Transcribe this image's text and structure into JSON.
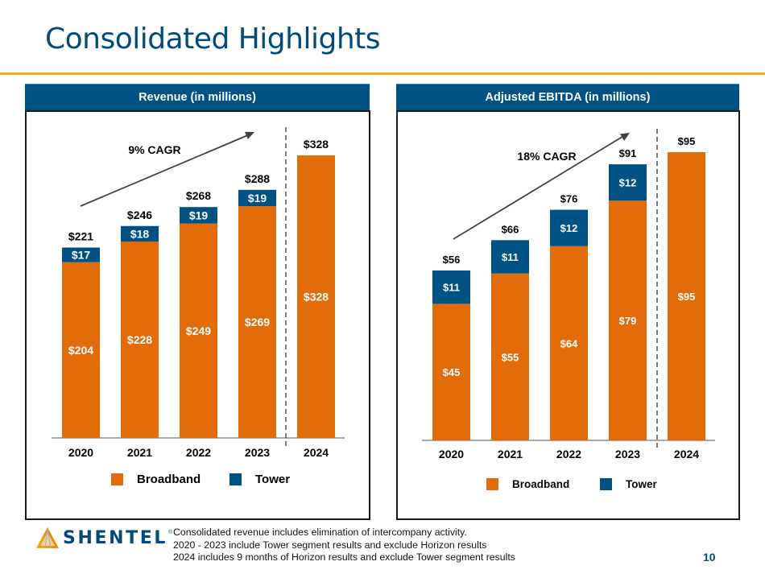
{
  "page": {
    "title": "Consolidated Highlights",
    "page_number": "10",
    "footnotes": [
      "Consolidated revenue includes elimination of intercompany activity.",
      "2020 - 2023 include Tower segment results and exclude Horizon results",
      "2024 includes 9 months of Horizon results and exclude Tower segment results"
    ],
    "logo": {
      "text": "SHENTEL",
      "registered": "®"
    }
  },
  "colors": {
    "broadband": "#e36c0a",
    "tower": "#005284",
    "header": "#005284",
    "title": "#004a7c",
    "accent_rule": "#f5ac16"
  },
  "chart_data": [
    {
      "id": "revenue",
      "type": "bar",
      "stacked": true,
      "title": "Revenue (in millions)",
      "categories": [
        "2020",
        "2021",
        "2022",
        "2023",
        "2024"
      ],
      "series": [
        {
          "name": "Broadband",
          "values": [
            204,
            228,
            249,
            269,
            328
          ],
          "labels": [
            "$204",
            "$228",
            "$249",
            "$269",
            "$328"
          ]
        },
        {
          "name": "Tower",
          "values": [
            17,
            18,
            19,
            19,
            0
          ],
          "labels": [
            "$17",
            "$18",
            "$19",
            "$19",
            ""
          ]
        }
      ],
      "totals": [
        221,
        246,
        268,
        288,
        328
      ],
      "total_labels": [
        "$221",
        "$246",
        "$268",
        "$288",
        "$328"
      ],
      "annotation": "9% CAGR",
      "divider_after_category": "2023",
      "legend": [
        "Broadband",
        "Tower"
      ],
      "legend_position": "bottom",
      "ylim": [
        0,
        328
      ],
      "grid": false
    },
    {
      "id": "ebitda",
      "type": "bar",
      "stacked": true,
      "title": "Adjusted EBITDA (in millions)",
      "categories": [
        "2020",
        "2021",
        "2022",
        "2023",
        "2024"
      ],
      "series": [
        {
          "name": "Broadband",
          "values": [
            45,
            55,
            64,
            79,
            95
          ],
          "labels": [
            "$45",
            "$55",
            "$64",
            "$79",
            "$95"
          ]
        },
        {
          "name": "Tower",
          "values": [
            11,
            11,
            12,
            12,
            0
          ],
          "labels": [
            "$11",
            "$11",
            "$12",
            "$12",
            ""
          ]
        }
      ],
      "totals": [
        56,
        66,
        76,
        91,
        95
      ],
      "total_labels": [
        "$56",
        "$66",
        "$76",
        "$91",
        "$95"
      ],
      "annotation": "18% CAGR",
      "divider_after_category": "2023",
      "legend": [
        "Broadband",
        "Tower"
      ],
      "legend_position": "bottom",
      "ylim": [
        0,
        95
      ],
      "grid": false
    }
  ]
}
